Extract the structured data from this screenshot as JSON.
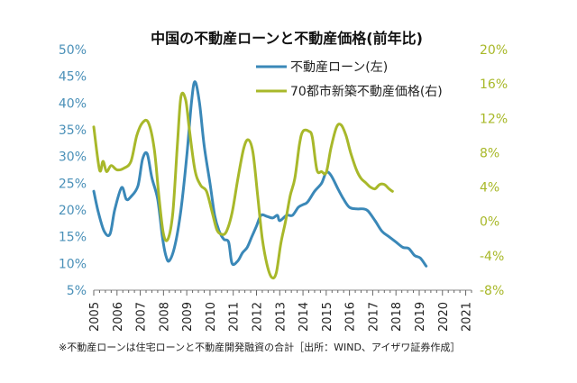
{
  "chart_data": {
    "type": "line",
    "title": "中国の不動産ローンと不動産価格(前年比)",
    "note": "※不動産ローンは住宅ローンと不動産開発融資の合計［出所：WIND、アイザワ証券作成］",
    "x_tick_labels": [
      "2005",
      "2006",
      "2007",
      "2008",
      "2009",
      "2010",
      "2011",
      "2012",
      "2013",
      "2014",
      "2015",
      "2016",
      "2017",
      "2018",
      "2019",
      "2020",
      "2021"
    ],
    "left_axis": {
      "ylim": [
        5,
        50
      ],
      "ticks": [
        "5%",
        "10%",
        "15%",
        "20%",
        "25%",
        "30%",
        "35%",
        "40%",
        "45%",
        "50%"
      ]
    },
    "right_axis": {
      "ylim": [
        -8,
        20
      ],
      "ticks": [
        "-8%",
        "-4%",
        "0%",
        "4%",
        "8%",
        "12%",
        "16%",
        "20%"
      ]
    },
    "grid": false,
    "legend_position": "top-center",
    "series": [
      {
        "name": "不動産ローン(左)",
        "axis": "left",
        "color": "#3a88b8",
        "points": [
          [
            2005.0,
            23.5
          ],
          [
            2005.2,
            19.5
          ],
          [
            2005.45,
            16.0
          ],
          [
            2005.7,
            15.5
          ],
          [
            2005.9,
            20.0
          ],
          [
            2006.2,
            24.2
          ],
          [
            2006.4,
            22.0
          ],
          [
            2006.6,
            22.5
          ],
          [
            2006.9,
            24.5
          ],
          [
            2007.1,
            29.5
          ],
          [
            2007.3,
            30.5
          ],
          [
            2007.5,
            26.0
          ],
          [
            2007.75,
            22.0
          ],
          [
            2007.95,
            15.0
          ],
          [
            2008.1,
            11.5
          ],
          [
            2008.25,
            10.5
          ],
          [
            2008.5,
            13.5
          ],
          [
            2008.75,
            20.0
          ],
          [
            2009.0,
            30.0
          ],
          [
            2009.2,
            40.0
          ],
          [
            2009.35,
            44.0
          ],
          [
            2009.55,
            40.0
          ],
          [
            2009.75,
            32.0
          ],
          [
            2010.0,
            25.0
          ],
          [
            2010.2,
            19.0
          ],
          [
            2010.4,
            16.0
          ],
          [
            2010.6,
            14.5
          ],
          [
            2010.8,
            14.0
          ],
          [
            2010.95,
            10.0
          ],
          [
            2011.2,
            10.5
          ],
          [
            2011.4,
            12.0
          ],
          [
            2011.6,
            13.0
          ],
          [
            2011.8,
            15.0
          ],
          [
            2012.0,
            17.0
          ],
          [
            2012.2,
            19.0
          ],
          [
            2012.45,
            18.8
          ],
          [
            2012.7,
            18.5
          ],
          [
            2012.9,
            19.0
          ],
          [
            2013.0,
            18.0
          ],
          [
            2013.3,
            19.0
          ],
          [
            2013.55,
            19.0
          ],
          [
            2013.8,
            20.5
          ],
          [
            2014.0,
            21.0
          ],
          [
            2014.2,
            21.5
          ],
          [
            2014.5,
            23.5
          ],
          [
            2014.8,
            25.0
          ],
          [
            2015.0,
            27.0
          ],
          [
            2015.2,
            26.5
          ],
          [
            2015.5,
            24.0
          ],
          [
            2015.75,
            22.0
          ],
          [
            2016.0,
            20.5
          ],
          [
            2016.3,
            20.2
          ],
          [
            2016.6,
            20.2
          ],
          [
            2016.8,
            19.8
          ],
          [
            2017.1,
            18.0
          ],
          [
            2017.4,
            16.0
          ],
          [
            2017.7,
            15.0
          ],
          [
            2018.0,
            14.0
          ],
          [
            2018.3,
            13.0
          ],
          [
            2018.55,
            12.8
          ],
          [
            2018.8,
            11.5
          ],
          [
            2019.05,
            11.0
          ],
          [
            2019.3,
            9.5
          ]
        ]
      },
      {
        "name": "70都市新築不動産価格(右)",
        "axis": "right",
        "color": "#a8b82a",
        "points": [
          [
            2005.0,
            11.0
          ],
          [
            2005.25,
            6.0
          ],
          [
            2005.4,
            7.0
          ],
          [
            2005.55,
            5.8
          ],
          [
            2005.75,
            6.5
          ],
          [
            2006.0,
            6.0
          ],
          [
            2006.3,
            6.2
          ],
          [
            2006.6,
            7.0
          ],
          [
            2006.85,
            10.0
          ],
          [
            2007.1,
            11.5
          ],
          [
            2007.35,
            11.5
          ],
          [
            2007.6,
            8.5
          ],
          [
            2007.8,
            3.0
          ],
          [
            2008.0,
            -1.5
          ],
          [
            2008.2,
            -2.0
          ],
          [
            2008.4,
            1.0
          ],
          [
            2008.6,
            9.0
          ],
          [
            2008.75,
            14.5
          ],
          [
            2008.95,
            14.2
          ],
          [
            2009.1,
            11.0
          ],
          [
            2009.35,
            6.0
          ],
          [
            2009.6,
            4.2
          ],
          [
            2009.85,
            3.5
          ],
          [
            2010.1,
            1.0
          ],
          [
            2010.3,
            -1.0
          ],
          [
            2010.5,
            -1.5
          ],
          [
            2010.7,
            -1.2
          ],
          [
            2010.95,
            1.0
          ],
          [
            2011.2,
            5.0
          ],
          [
            2011.45,
            8.5
          ],
          [
            2011.65,
            9.5
          ],
          [
            2011.85,
            8.0
          ],
          [
            2012.05,
            3.0
          ],
          [
            2012.25,
            -2.0
          ],
          [
            2012.45,
            -5.0
          ],
          [
            2012.65,
            -6.5
          ],
          [
            2012.85,
            -6.0
          ],
          [
            2013.05,
            -2.5
          ],
          [
            2013.25,
            0.0
          ],
          [
            2013.45,
            3.0
          ],
          [
            2013.65,
            5.0
          ],
          [
            2013.85,
            9.0
          ],
          [
            2014.0,
            10.5
          ],
          [
            2014.25,
            10.5
          ],
          [
            2014.4,
            9.8
          ],
          [
            2014.6,
            6.0
          ],
          [
            2014.8,
            5.8
          ],
          [
            2015.0,
            5.7
          ],
          [
            2015.2,
            8.5
          ],
          [
            2015.45,
            11.0
          ],
          [
            2015.65,
            11.2
          ],
          [
            2015.85,
            10.0
          ],
          [
            2016.05,
            8.0
          ],
          [
            2016.3,
            6.0
          ],
          [
            2016.5,
            5.0
          ],
          [
            2016.7,
            4.5
          ],
          [
            2016.9,
            4.0
          ],
          [
            2017.1,
            3.8
          ],
          [
            2017.3,
            4.3
          ],
          [
            2017.5,
            4.3
          ],
          [
            2017.7,
            3.8
          ],
          [
            2017.85,
            3.5
          ]
        ]
      }
    ]
  }
}
